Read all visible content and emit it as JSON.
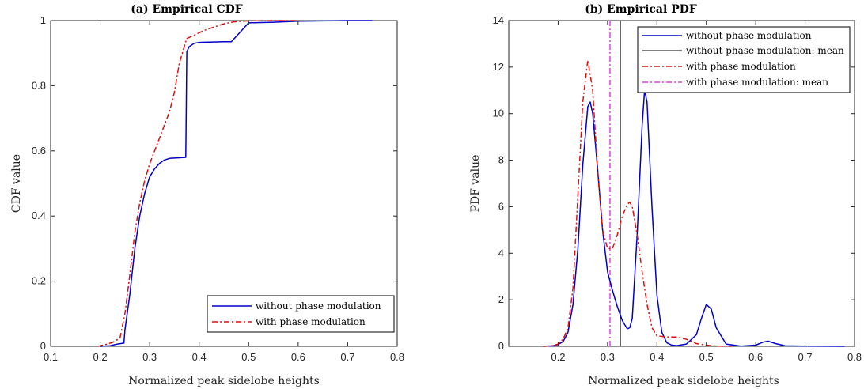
{
  "chart_data": [
    {
      "type": "line",
      "title": "(a) Empirical CDF",
      "xlabel": "Normalized peak sidelobe heights",
      "ylabel": "CDF value",
      "xlim": [
        0.1,
        0.8
      ],
      "ylim": [
        0,
        1
      ],
      "xticks": [
        0.1,
        0.2,
        0.3,
        0.4,
        0.5,
        0.6,
        0.7,
        0.8
      ],
      "xtick_labels": [
        "0.1",
        "0.2",
        "0.3",
        "0.4",
        "0.5",
        "0.6",
        "0.7",
        "0.8"
      ],
      "yticks": [
        0,
        0.2,
        0.4,
        0.6,
        0.8,
        1
      ],
      "ytick_labels": [
        "0",
        "0.2",
        "0.4",
        "0.6",
        "0.8",
        "1"
      ],
      "grid": false,
      "legend": "bottom-right",
      "series": [
        {
          "name": "without phase modulation",
          "color": "#0000cc",
          "style": "solid",
          "x": [
            0.2,
            0.22,
            0.235,
            0.248,
            0.25,
            0.26,
            0.27,
            0.28,
            0.29,
            0.3,
            0.31,
            0.32,
            0.33,
            0.34,
            0.35,
            0.36,
            0.373,
            0.375,
            0.38,
            0.39,
            0.4,
            0.42,
            0.45,
            0.465,
            0.5,
            0.55,
            0.6,
            0.65,
            0.7,
            0.75
          ],
          "y": [
            0.0,
            0.002,
            0.007,
            0.01,
            0.05,
            0.16,
            0.3,
            0.4,
            0.47,
            0.52,
            0.545,
            0.562,
            0.572,
            0.577,
            0.578,
            0.579,
            0.58,
            0.905,
            0.92,
            0.93,
            0.933,
            0.934,
            0.935,
            0.935,
            0.993,
            0.995,
            0.998,
            0.999,
            1.0,
            1.0
          ]
        },
        {
          "name": "with phase modulation",
          "color": "#dd1111",
          "style": "dashdot",
          "x": [
            0.195,
            0.21,
            0.225,
            0.24,
            0.25,
            0.26,
            0.27,
            0.28,
            0.29,
            0.3,
            0.31,
            0.32,
            0.33,
            0.34,
            0.35,
            0.36,
            0.37,
            0.375,
            0.39,
            0.41,
            0.43,
            0.45,
            0.47,
            0.5,
            0.55,
            0.6
          ],
          "y": [
            0.0,
            0.005,
            0.012,
            0.025,
            0.1,
            0.22,
            0.35,
            0.44,
            0.51,
            0.56,
            0.6,
            0.64,
            0.68,
            0.72,
            0.78,
            0.87,
            0.92,
            0.945,
            0.955,
            0.97,
            0.98,
            0.99,
            0.996,
            0.999,
            1.0,
            1.0
          ]
        }
      ]
    },
    {
      "type": "line",
      "title": "(b) Empirical PDF",
      "xlabel": "Normalized peak sidelobe heights",
      "ylabel": "PDF value",
      "xlim": [
        0.1,
        0.8
      ],
      "ylim": [
        0,
        14
      ],
      "xticks": [
        0.2,
        0.3,
        0.4,
        0.5,
        0.6,
        0.7,
        0.8
      ],
      "xtick_labels": [
        "0.2",
        "0.3",
        "0.4",
        "0.5",
        "0.6",
        "0.7",
        "0.8"
      ],
      "yticks": [
        0,
        2,
        4,
        6,
        8,
        10,
        12,
        14
      ],
      "ytick_labels": [
        "0",
        "2",
        "4",
        "6",
        "8",
        "10",
        "12",
        "14"
      ],
      "grid": false,
      "legend": "top-right",
      "series": [
        {
          "name": "without phase modulation",
          "color": "#0000cc",
          "style": "solid",
          "x": [
            0.17,
            0.19,
            0.2,
            0.21,
            0.22,
            0.23,
            0.24,
            0.25,
            0.26,
            0.265,
            0.27,
            0.28,
            0.29,
            0.3,
            0.31,
            0.32,
            0.33,
            0.34,
            0.345,
            0.35,
            0.36,
            0.37,
            0.375,
            0.38,
            0.39,
            0.4,
            0.41,
            0.42,
            0.43,
            0.44,
            0.46,
            0.48,
            0.49,
            0.5,
            0.51,
            0.52,
            0.54,
            0.57,
            0.6,
            0.615,
            0.625,
            0.64,
            0.66,
            0.7,
            0.78
          ],
          "y": [
            0.0,
            0.02,
            0.08,
            0.2,
            0.6,
            1.8,
            4.2,
            7.8,
            10.3,
            10.5,
            10.0,
            7.6,
            5.0,
            3.2,
            2.4,
            1.7,
            1.1,
            0.75,
            0.8,
            1.2,
            4.8,
            9.5,
            11.0,
            10.5,
            6.0,
            2.2,
            0.6,
            0.15,
            0.05,
            0.03,
            0.1,
            0.5,
            1.2,
            1.8,
            1.6,
            0.8,
            0.1,
            0.01,
            0.05,
            0.18,
            0.22,
            0.12,
            0.02,
            0.01,
            0.0
          ]
        },
        {
          "name": "with phase modulation",
          "color": "#dd1111",
          "style": "dashdot",
          "x": [
            0.17,
            0.19,
            0.2,
            0.21,
            0.22,
            0.23,
            0.24,
            0.25,
            0.26,
            0.27,
            0.28,
            0.29,
            0.3,
            0.31,
            0.32,
            0.33,
            0.34,
            0.345,
            0.35,
            0.36,
            0.37,
            0.38,
            0.39,
            0.4,
            0.42,
            0.44,
            0.46,
            0.48,
            0.5,
            0.52,
            0.55
          ],
          "y": [
            0.0,
            0.03,
            0.1,
            0.3,
            0.8,
            2.5,
            6.5,
            10.5,
            12.3,
            11.0,
            7.5,
            5.0,
            4.2,
            4.2,
            4.8,
            5.6,
            6.1,
            6.2,
            6.0,
            4.8,
            3.2,
            1.8,
            0.8,
            0.45,
            0.4,
            0.4,
            0.3,
            0.12,
            0.05,
            0.01,
            0.0
          ]
        }
      ],
      "mean_lines": [
        {
          "name": "without phase modulation: mean",
          "x": 0.326,
          "color": "#000000",
          "style": "solid"
        },
        {
          "name": "with phase modulation: mean",
          "x": 0.305,
          "color": "#e040e0",
          "style": "dashdot"
        }
      ]
    }
  ]
}
